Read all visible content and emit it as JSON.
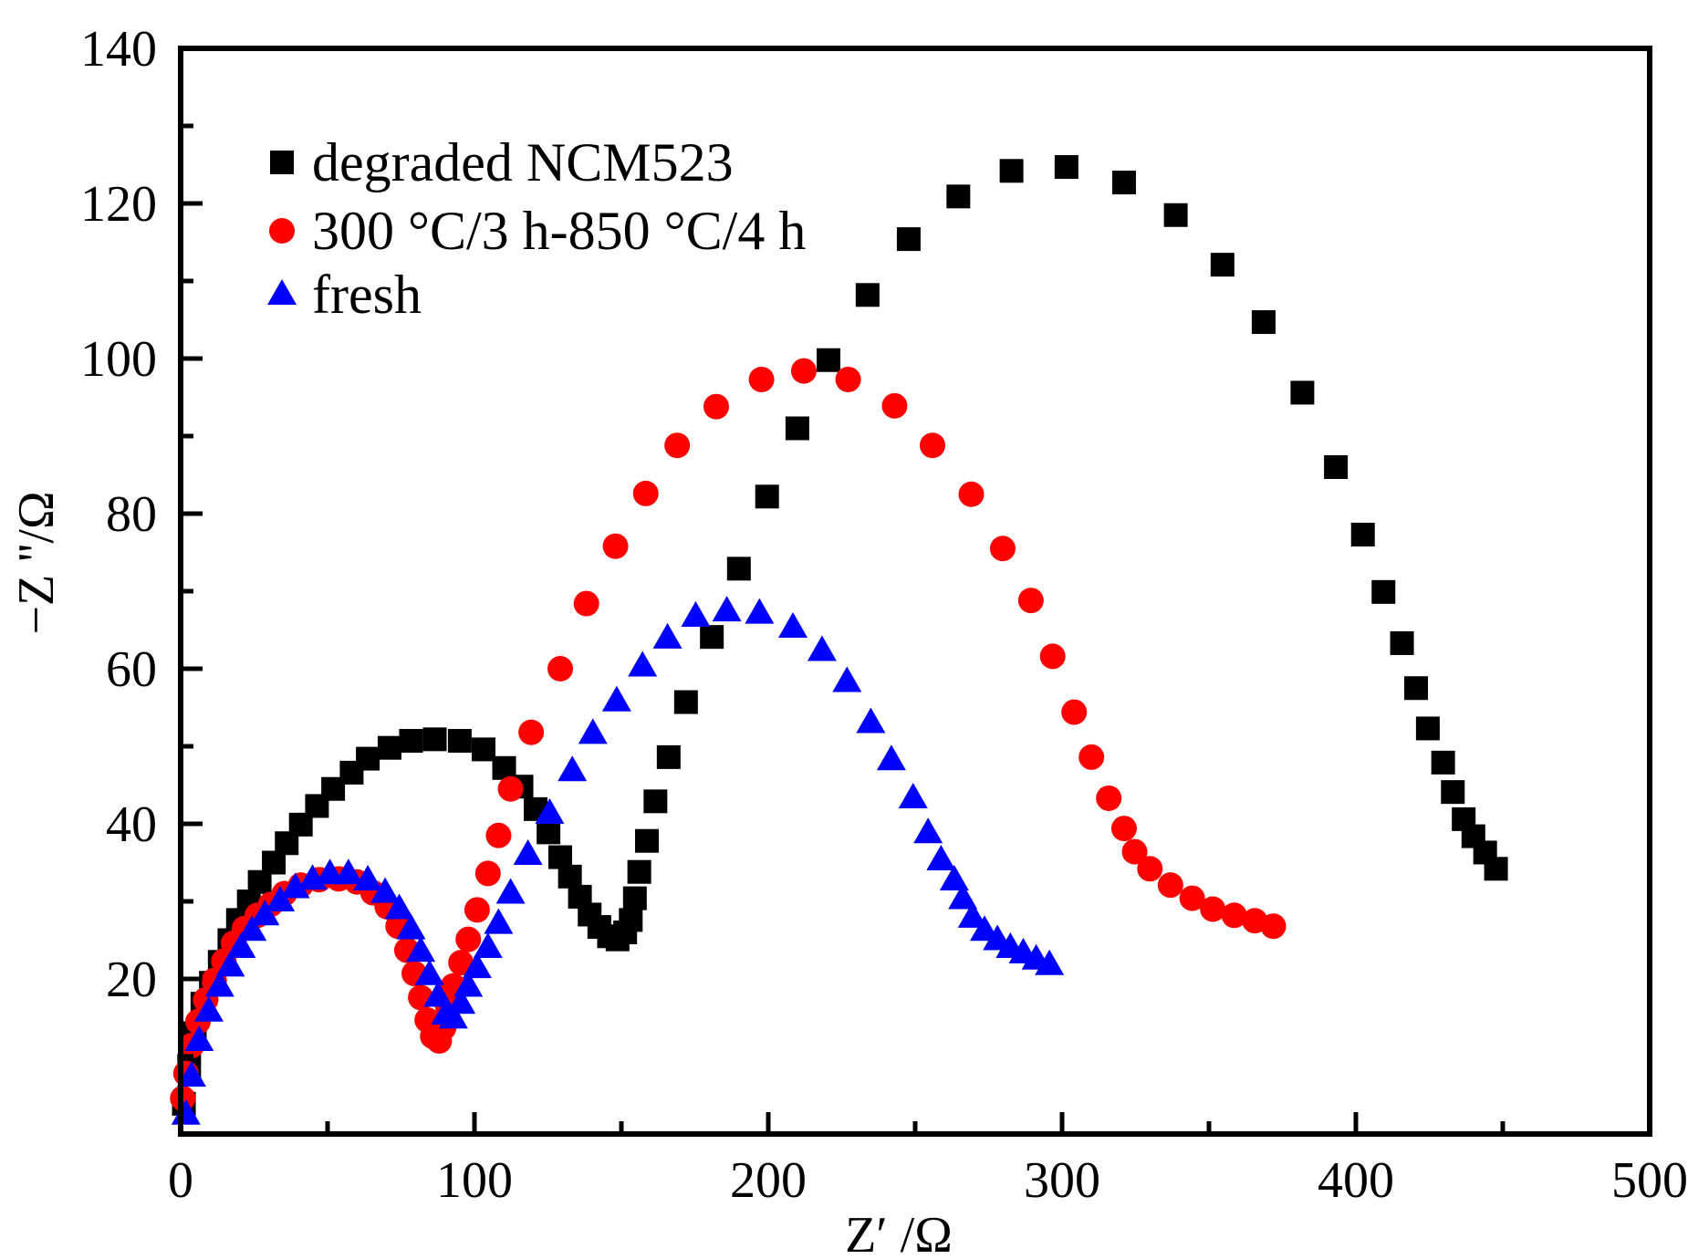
{
  "chart_data": {
    "type": "scatter",
    "title": "",
    "xlabel": "Z′ /Ω",
    "ylabel": "−Z ''/Ω",
    "xlim": [
      0,
      500
    ],
    "ylim": [
      0,
      140
    ],
    "xticks": [
      0,
      100,
      200,
      300,
      400,
      500
    ],
    "xtick_labels": [
      "0",
      "100",
      "200",
      "300",
      "400",
      "500"
    ],
    "yticks": [
      20,
      40,
      60,
      80,
      100,
      120,
      140
    ],
    "ytick_labels": [
      "20",
      "40",
      "60",
      "80",
      "100",
      "120",
      "140"
    ],
    "grid": false,
    "legend_position": "top-left",
    "series": [
      {
        "name": "degraded NCM523",
        "marker": "square",
        "color": "#000000",
        "x": [
          447.7,
          444.0,
          440.0,
          436.7,
          433.0,
          429.7,
          424.5,
          420.5,
          415.7,
          409.4,
          402.4,
          393.2,
          381.8,
          368.6,
          354.6,
          338.7,
          321.1,
          301.5,
          282.8,
          264.7,
          247.8,
          233.8,
          220.5,
          209.9,
          199.6,
          190.0,
          180.8,
          172.0,
          166.1,
          161.6,
          158.7,
          156.1,
          154.6,
          153.2,
          151.3,
          148.7,
          145.8,
          142.5,
          139.2,
          135.9,
          132.5,
          129.2,
          125.2,
          120.8,
          116.0,
          110.1,
          103.1,
          95.0,
          86.5,
          78.4,
          71.1,
          63.7,
          58.2,
          51.9,
          46.4,
          40.9,
          36.1,
          31.7,
          26.9,
          23.2,
          19.5,
          16.6,
          13.3,
          10.3,
          7.4,
          4.8,
          2.9,
          1.1
        ],
        "y": [
          34.2,
          36.3,
          38.4,
          40.6,
          44.1,
          47.9,
          52.3,
          57.5,
          63.3,
          69.9,
          77.3,
          86.0,
          95.6,
          104.7,
          112.1,
          118.5,
          122.7,
          124.7,
          124.2,
          120.9,
          115.4,
          108.2,
          99.8,
          91.0,
          82.2,
          72.9,
          64.1,
          55.7,
          48.6,
          42.9,
          37.8,
          33.8,
          30.4,
          27.6,
          26.0,
          25.1,
          25.5,
          26.7,
          28.3,
          30.6,
          33.2,
          35.7,
          38.9,
          41.9,
          44.8,
          47.2,
          49.6,
          50.7,
          50.9,
          50.7,
          49.8,
          48.4,
          46.6,
          44.5,
          42.3,
          39.9,
          37.5,
          35.0,
          32.5,
          30.0,
          27.6,
          25.0,
          22.2,
          19.5,
          16.8,
          13.0,
          8.8,
          3.9
        ]
      },
      {
        "name": "300 °C/3 h-850 °C/4 h",
        "marker": "circle",
        "color": "#ff0000",
        "x": [
          371.9,
          365.6,
          358.6,
          351.3,
          344.3,
          336.9,
          329.9,
          324.7,
          321.1,
          315.9,
          310.0,
          304.1,
          296.8,
          289.4,
          279.8,
          269.1,
          255.9,
          243.0,
          227.2,
          212.1,
          197.7,
          182.3,
          169.0,
          158.3,
          148.0,
          138.1,
          129.2,
          119.3,
          112.3,
          108.2,
          104.6,
          100.9,
          97.9,
          95.4,
          92.8,
          90.9,
          89.5,
          88.0,
          85.8,
          83.9,
          81.7,
          79.5,
          77.0,
          74.0,
          70.3,
          65.5,
          60.0,
          53.8,
          47.1,
          40.9,
          35.3,
          30.6,
          26.1,
          21.7,
          18.0,
          14.7,
          11.4,
          8.5,
          5.9,
          3.7,
          1.8,
          0.7
        ],
        "y": [
          26.8,
          27.5,
          28.2,
          29.0,
          30.4,
          32.1,
          34.2,
          36.4,
          39.4,
          43.3,
          48.6,
          54.4,
          61.6,
          68.8,
          75.5,
          82.5,
          88.8,
          93.9,
          97.3,
          98.4,
          97.3,
          93.8,
          88.8,
          82.6,
          75.8,
          68.4,
          60.0,
          51.8,
          44.5,
          38.5,
          33.6,
          28.9,
          25.1,
          22.1,
          19.1,
          16.5,
          13.7,
          12.0,
          12.6,
          14.7,
          17.6,
          20.7,
          23.7,
          26.8,
          29.3,
          31.1,
          32.5,
          32.9,
          32.8,
          32.1,
          31.0,
          29.6,
          28.2,
          26.5,
          24.6,
          22.3,
          19.8,
          17.3,
          14.5,
          11.4,
          7.8,
          4.6
        ]
      },
      {
        "name": "fresh",
        "marker": "triangle",
        "color": "#0000ff",
        "x": [
          295.7,
          291.2,
          286.8,
          282.4,
          278.0,
          273.6,
          269.5,
          266.2,
          263.3,
          258.8,
          254.4,
          249.3,
          241.9,
          234.9,
          226.8,
          218.3,
          208.4,
          197.0,
          185.9,
          175.3,
          165.7,
          157.2,
          148.4,
          140.3,
          133.3,
          125.6,
          118.2,
          112.3,
          108.2,
          104.6,
          100.9,
          97.9,
          95.4,
          92.8,
          90.2,
          87.6,
          84.7,
          81.7,
          78.4,
          74.4,
          69.6,
          63.7,
          57.1,
          50.8,
          44.9,
          39.0,
          33.9,
          28.7,
          24.3,
          20.6,
          16.9,
          13.3,
          9.6,
          6.3,
          3.7,
          1.8
        ],
        "y": [
          21.8,
          22.5,
          23.3,
          24.0,
          25.0,
          26.2,
          27.9,
          30.3,
          32.7,
          35.3,
          38.8,
          43.3,
          48.2,
          53.0,
          58.3,
          62.3,
          65.3,
          67.1,
          67.4,
          66.7,
          63.9,
          60.3,
          55.8,
          51.6,
          46.8,
          41.3,
          36.0,
          31.0,
          27.1,
          24.0,
          21.4,
          19.0,
          16.8,
          14.9,
          15.4,
          17.7,
          20.5,
          23.5,
          26.4,
          29.0,
          31.1,
          32.7,
          33.5,
          33.5,
          32.8,
          31.7,
          30.0,
          28.2,
          26.2,
          24.0,
          21.6,
          19.0,
          15.8,
          12.0,
          7.4,
          2.5
        ]
      }
    ]
  }
}
